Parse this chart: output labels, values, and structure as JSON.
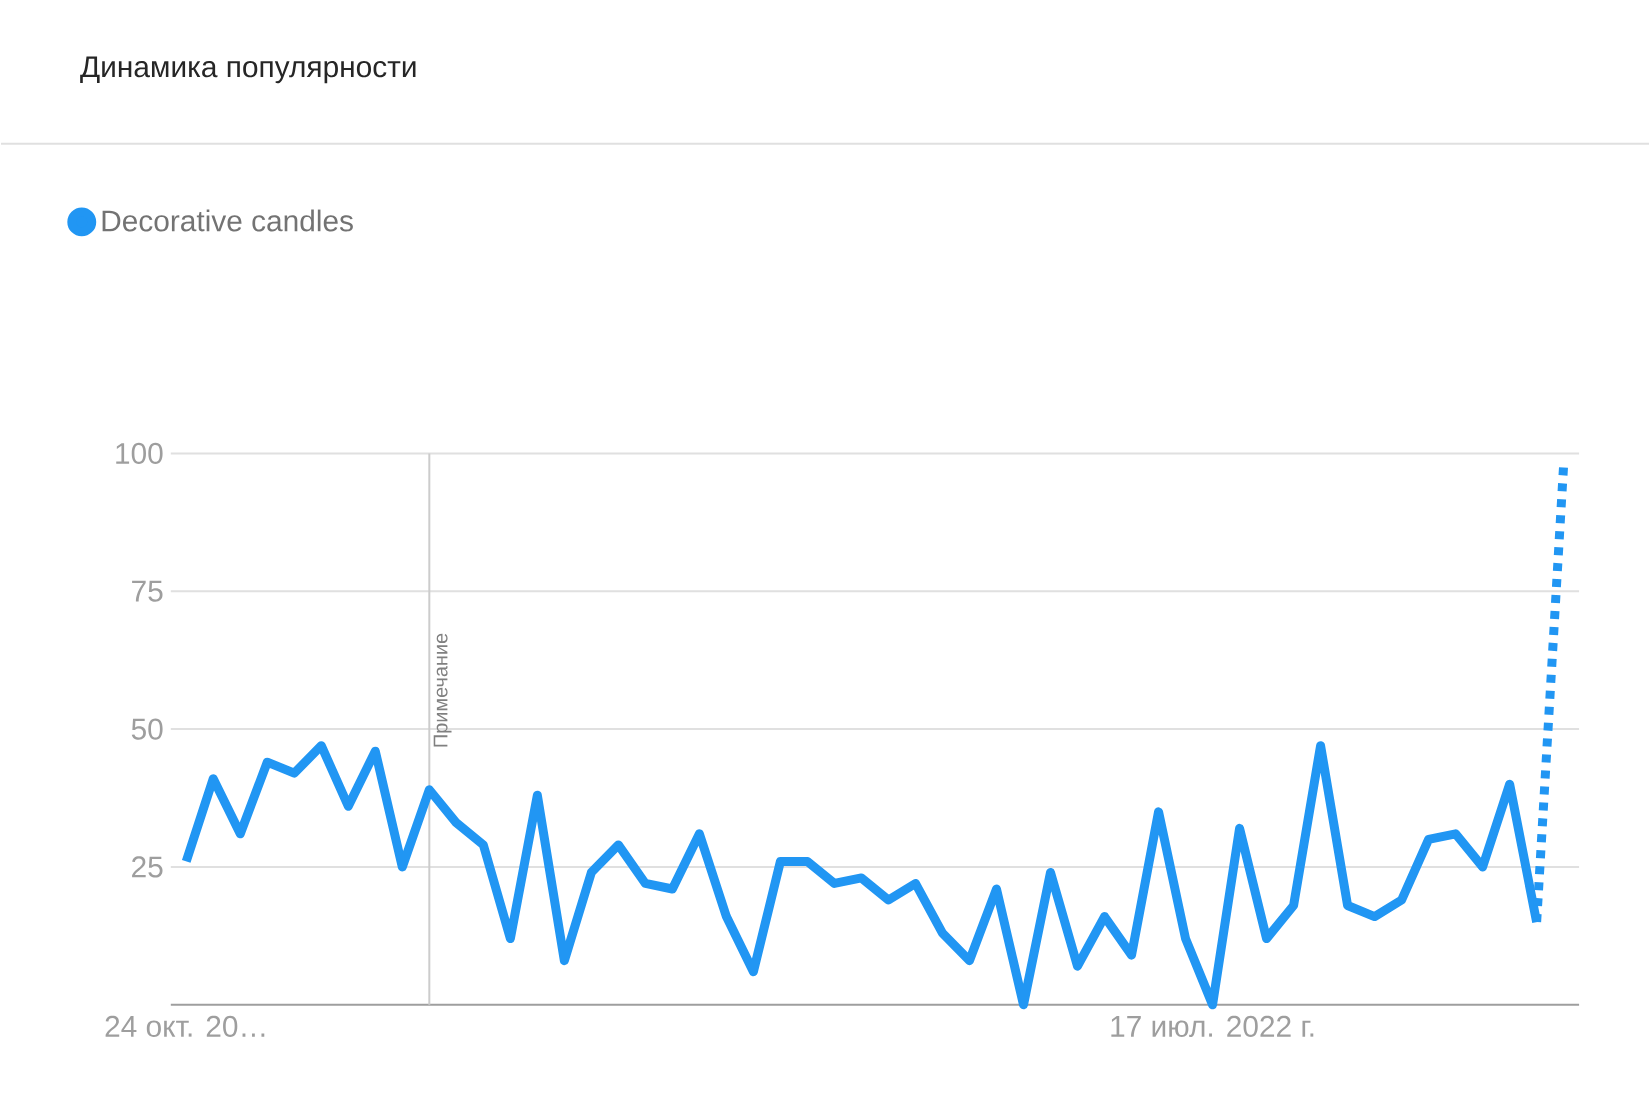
{
  "chart_data": {
    "type": "line",
    "title": "Динамика популярности",
    "x": [
      "2021-10-24",
      "2021-10-31",
      "2021-11-07",
      "2021-11-14",
      "2021-11-21",
      "2021-11-28",
      "2021-12-05",
      "2021-12-12",
      "2021-12-19",
      "2021-12-26",
      "2022-01-02",
      "2022-01-09",
      "2022-01-16",
      "2022-01-23",
      "2022-01-30",
      "2022-02-06",
      "2022-02-13",
      "2022-02-20",
      "2022-02-27",
      "2022-03-06",
      "2022-03-13",
      "2022-03-20",
      "2022-03-27",
      "2022-04-03",
      "2022-04-10",
      "2022-04-17",
      "2022-04-24",
      "2022-05-01",
      "2022-05-08",
      "2022-05-15",
      "2022-05-22",
      "2022-05-29",
      "2022-06-05",
      "2022-06-12",
      "2022-06-19",
      "2022-06-26",
      "2022-07-03",
      "2022-07-10",
      "2022-07-17",
      "2022-07-24",
      "2022-07-31",
      "2022-08-07",
      "2022-08-14",
      "2022-08-21",
      "2022-08-28",
      "2022-09-04",
      "2022-09-11",
      "2022-09-18",
      "2022-09-25",
      "2022-10-02",
      "2022-10-09"
    ],
    "series": [
      {
        "name": "Decorative candles",
        "color": "#2196f3",
        "values": [
          26,
          41,
          31,
          44,
          42,
          47,
          36,
          46,
          25,
          39,
          33,
          29,
          12,
          38,
          8,
          24,
          29,
          22,
          21,
          31,
          16,
          6,
          26,
          26,
          22,
          23,
          19,
          22,
          13,
          8,
          21,
          0,
          24,
          7,
          16,
          9,
          35,
          12,
          0,
          32,
          12,
          18,
          47,
          18,
          16,
          19,
          30,
          31,
          25,
          40,
          15
        ]
      },
      {
        "color": "#2196f3",
        "line_style": "dotted",
        "x": [
          "2022-10-09",
          "2022-10-16"
        ],
        "values": [
          15,
          98
        ]
      }
    ],
    "xlim": [
      "2021-10-20",
      "2022-10-20"
    ],
    "xticks": [
      {
        "value": "2021-10-24",
        "label": "24 окт. 20…"
      },
      {
        "value": "2022-07-17",
        "label": "17 июл. 2022 г."
      }
    ],
    "ylim": [
      0,
      100
    ],
    "yticks": [
      25,
      50,
      75,
      100
    ],
    "ref_lines": [
      {
        "axis": "x",
        "value": "2021-12-26",
        "label": "Примечание",
        "color": "#cccccc"
      }
    ],
    "grid": "y",
    "legend": "top left",
    "marker": "none",
    "line_style": "solid"
  }
}
